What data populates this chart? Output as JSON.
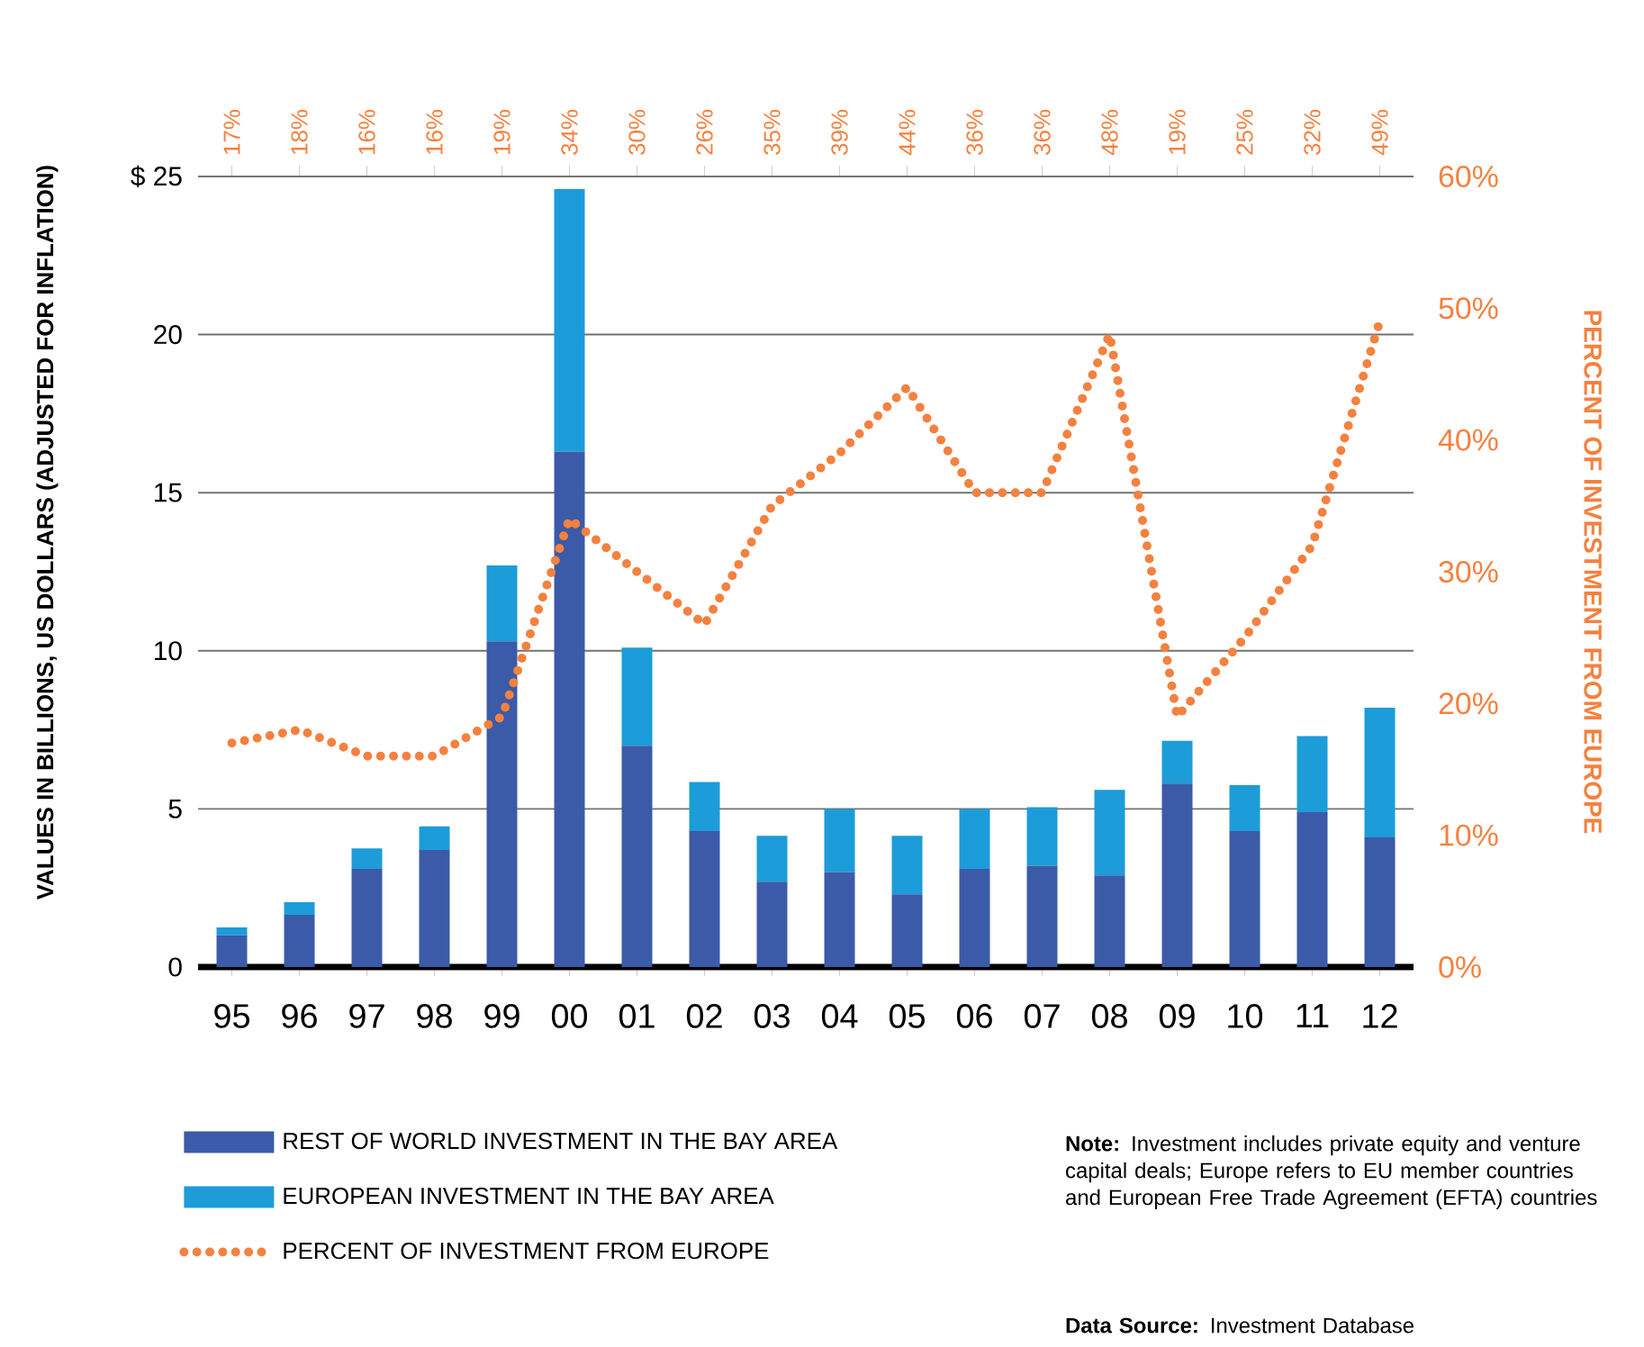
{
  "chart_data": {
    "type": "bar",
    "stacked": true,
    "categories": [
      "95",
      "96",
      "97",
      "98",
      "99",
      "00",
      "01",
      "02",
      "03",
      "04",
      "05",
      "06",
      "07",
      "08",
      "09",
      "10",
      "11",
      "12"
    ],
    "series": [
      {
        "name": "REST OF WORLD INVESTMENT IN THE BAY AREA",
        "color": "#3b5aa8",
        "values": [
          1.0,
          1.65,
          3.1,
          3.7,
          10.3,
          16.3,
          7.0,
          4.3,
          2.7,
          3.0,
          2.3,
          3.1,
          3.2,
          2.9,
          5.8,
          4.3,
          4.9,
          4.1
        ]
      },
      {
        "name": "EUROPEAN INVESTMENT IN THE BAY AREA",
        "color": "#1c9cd8",
        "values": [
          0.25,
          0.4,
          0.65,
          0.75,
          2.4,
          8.3,
          3.1,
          1.55,
          1.45,
          2.0,
          1.85,
          1.9,
          1.85,
          2.7,
          1.35,
          1.45,
          2.4,
          4.1
        ]
      },
      {
        "name": "PERCENT OF INVESTMENT FROM EUROPE",
        "type": "line",
        "axis": "y2",
        "line_style": "dotted",
        "color": "#f4813f",
        "values": [
          17,
          18,
          16,
          16,
          19,
          34,
          30,
          26,
          35,
          39,
          44,
          36,
          36,
          48,
          19,
          25,
          32,
          49
        ],
        "value_labels": [
          "17%",
          "18%",
          "16%",
          "16%",
          "19%",
          "34%",
          "30%",
          "26%",
          "35%",
          "39%",
          "44%",
          "36%",
          "36%",
          "48%",
          "19%",
          "25%",
          "32%",
          "49%"
        ]
      }
    ],
    "ylim": [
      0,
      25
    ],
    "yticks": [
      0,
      5,
      10,
      15,
      20,
      {
        "value": 25,
        "label": "$ 25"
      }
    ],
    "y2lim": [
      0,
      60
    ],
    "y2ticks": [
      {
        "value": 0,
        "label": "0%"
      },
      {
        "value": 10,
        "label": "10%"
      },
      {
        "value": 20,
        "label": "20%"
      },
      {
        "value": 30,
        "label": "30%"
      },
      {
        "value": 40,
        "label": "40%"
      },
      {
        "value": 50,
        "label": "50%"
      },
      {
        "value": 60,
        "label": "60%"
      }
    ],
    "ylabel": "VALUES IN BILLIONS, US DOLLARS (ADJUSTED FOR INFLATION)",
    "y2label": "PERCENT OF INVESTMENT FROM EUROPE",
    "grid": "y",
    "legend": "bottom",
    "annotations": [
      "**Note:** Investment includes private equity and venture capital deals; Europe refers to EU member countries and European Free Trade Agreement (EFTA) countries",
      "**Data Source:** Investment Database"
    ]
  }
}
